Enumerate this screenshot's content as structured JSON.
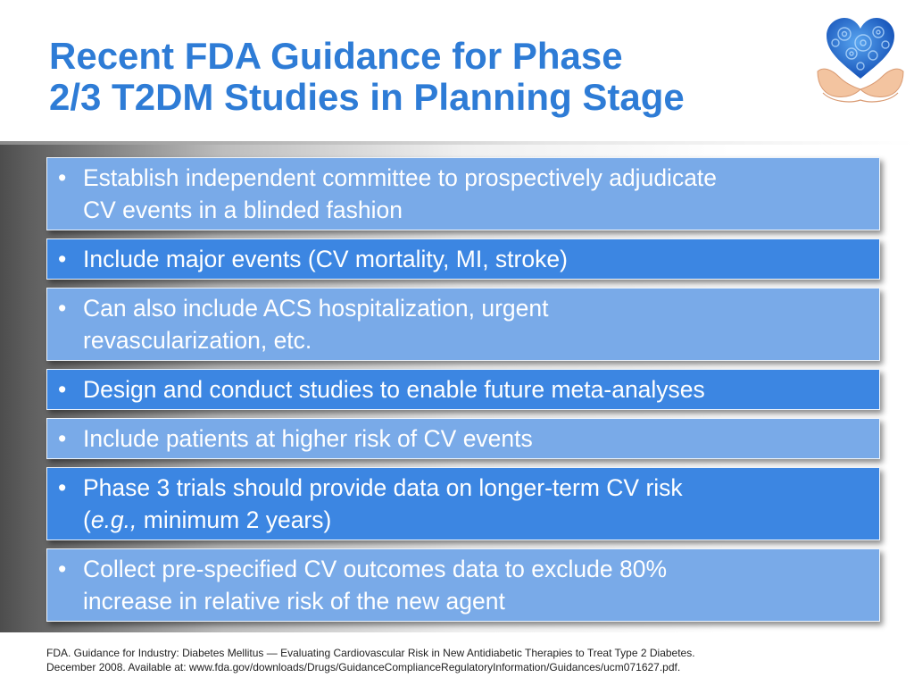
{
  "title": {
    "line1": "Recent FDA Guidance for Phase",
    "line2": "2/3 T2DM Studies in Planning Stage"
  },
  "logo": {
    "icon": "heart-in-hands-icon"
  },
  "bullet_glyph": "•",
  "items": [
    {
      "line1": "Establish independent committee to prospectively adjudicate",
      "line2": "CV events in a blinded fashion"
    },
    {
      "line1": "Include major events (CV mortality, MI, stroke)"
    },
    {
      "line1": "Can also include ACS hospitalization, urgent",
      "line2": "revascularization, etc."
    },
    {
      "line1": "Design and conduct studies to enable future meta-analyses"
    },
    {
      "line1": "Include patients at higher risk of CV events"
    },
    {
      "line1": "Phase 3 trials should provide data on longer-term CV risk",
      "line2_open": "(",
      "line2_italic": "e.g.,",
      "line2_rest": " minimum 2 years)"
    },
    {
      "line1": "Collect pre-specified CV outcomes data to exclude 80%",
      "line2": "increase in relative risk of the new agent"
    }
  ],
  "footnote": {
    "line1": "FDA. Guidance for Industry: Diabetes Mellitus — Evaluating Cardiovascular Risk in New Antidiabetic Therapies to Treat Type 2 Diabetes.",
    "line2": "December 2008. Available at: www.fda.gov/downloads/Drugs/GuidanceComplianceRegulatoryInformation/Guidances/ucm071627.pdf."
  },
  "colors": {
    "title": "#2e7cd6",
    "box_light": "#79aae8",
    "box_dark": "#3c86e2"
  }
}
